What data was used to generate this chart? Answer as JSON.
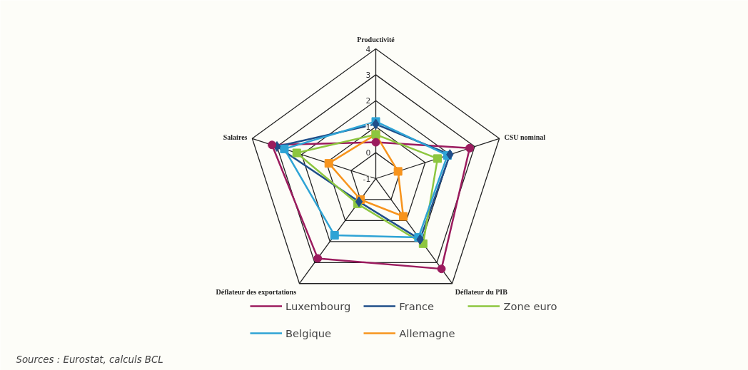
{
  "chart_data": {
    "type": "radar",
    "categories": [
      "Productivité",
      "CSU nominal",
      "Déflateur du PIB",
      "Déflateur des exportations",
      "Salaires"
    ],
    "ylim": [
      -1,
      4
    ],
    "yticks": [
      -1,
      0,
      1,
      2,
      3,
      4
    ],
    "grid": true,
    "legend": "bottom",
    "series": [
      {
        "name": "Luxembourg",
        "color": "#9b1b5e",
        "marker": "circle",
        "values": [
          0.4,
          2.8,
          3.3,
          2.8,
          3.2
        ]
      },
      {
        "name": "France",
        "color": "#1f4e89",
        "marker": "diamond",
        "values": [
          1.1,
          2.0,
          1.9,
          0.1,
          3.0
        ]
      },
      {
        "name": "Zone euro",
        "color": "#8dc63f",
        "marker": "square",
        "values": [
          0.7,
          1.5,
          2.1,
          0.2,
          2.2
        ]
      },
      {
        "name": "Belgique",
        "color": "#2ea3d5",
        "marker": "square",
        "values": [
          1.2,
          1.9,
          1.8,
          1.7,
          2.7
        ]
      },
      {
        "name": "Allemagne",
        "color": "#f7941d",
        "marker": "square",
        "values": [
          0.7,
          -0.1,
          0.8,
          0.0,
          0.9
        ]
      }
    ],
    "annotations": [
      "Sources : Eurostat, calculs BCL"
    ]
  }
}
